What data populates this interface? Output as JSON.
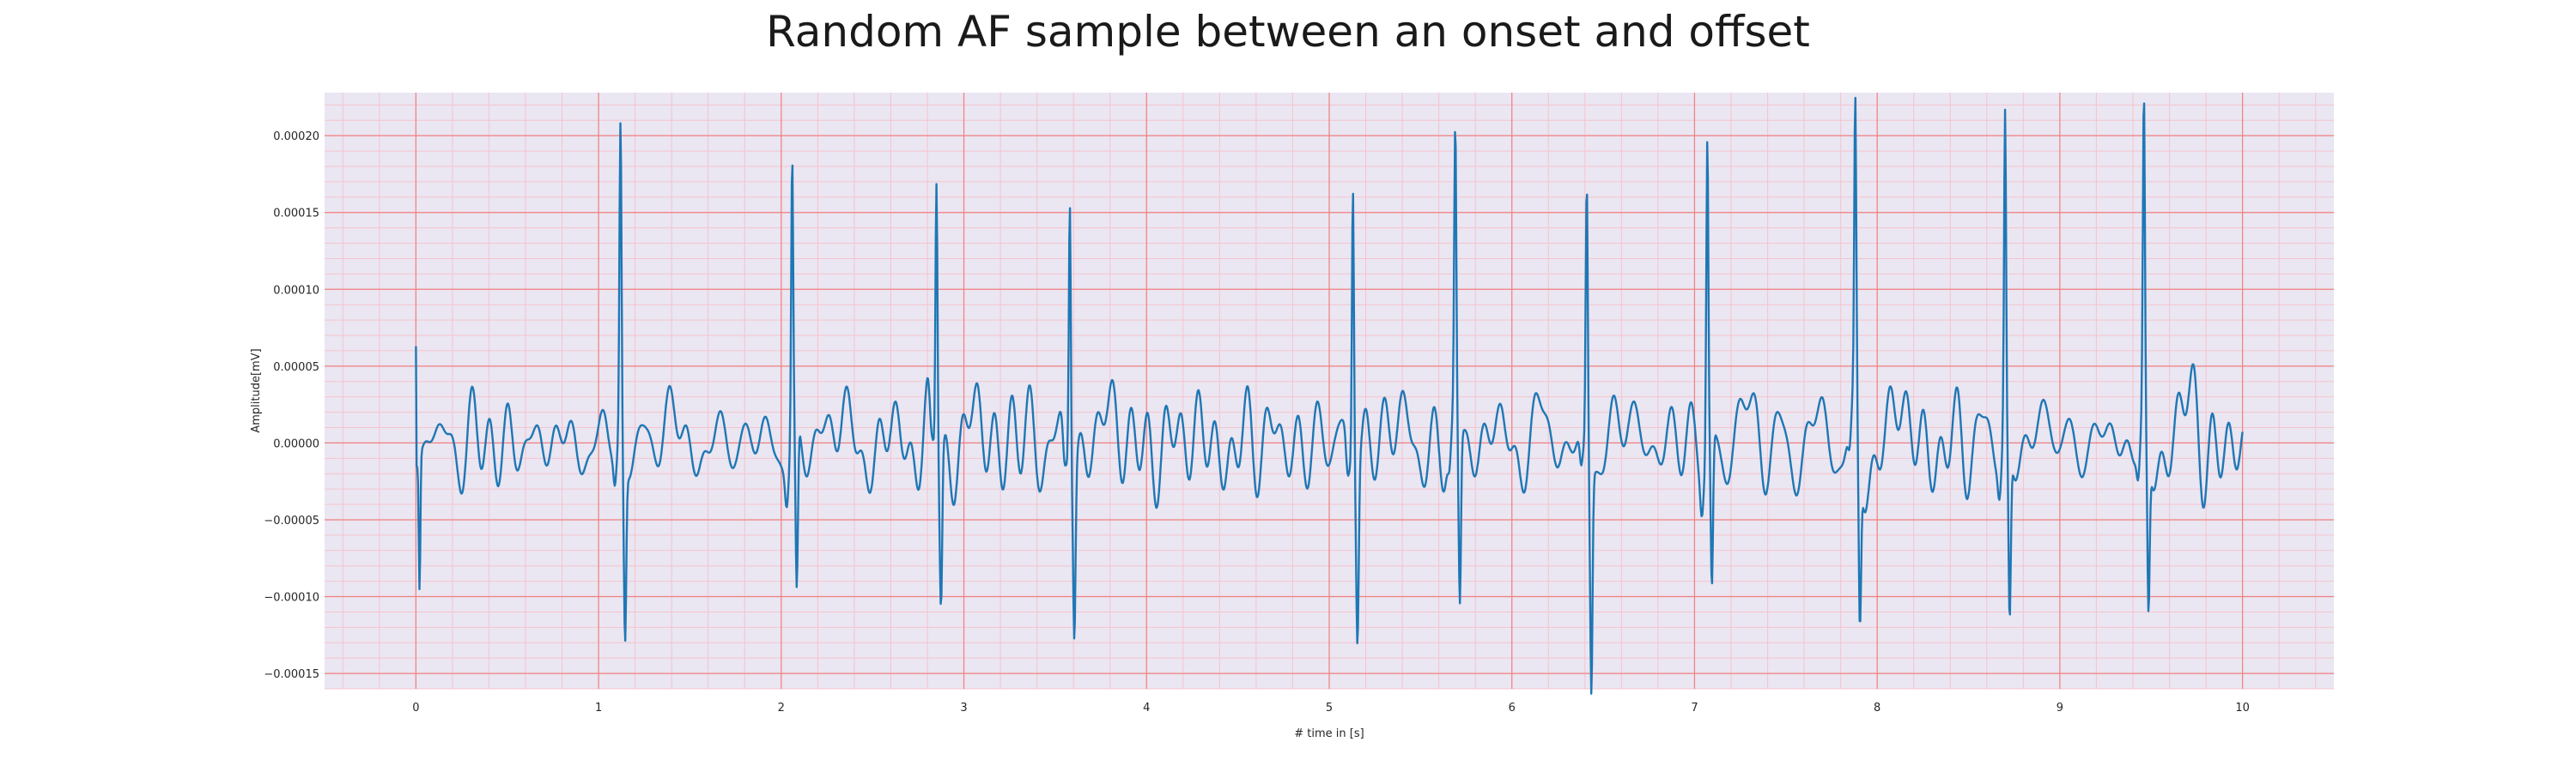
{
  "chart_data": {
    "type": "line",
    "title": "Random AF sample between an onset and offset",
    "xlabel": "# time in [s]",
    "ylabel": "Amplitude[mV]",
    "xlim": [
      -0.5,
      10.5
    ],
    "ylim": [
      -0.00016,
      0.000228
    ],
    "x_ticks": [
      0,
      1,
      2,
      3,
      4,
      5,
      6,
      7,
      8,
      9,
      10
    ],
    "x_tick_labels": [
      "0",
      "1",
      "2",
      "3",
      "4",
      "5",
      "6",
      "7",
      "8",
      "9",
      "10"
    ],
    "y_ticks": [
      -0.00015,
      -0.0001,
      -5e-05,
      0,
      5e-05,
      0.0001,
      0.00015,
      0.0002
    ],
    "y_tick_labels": [
      "−0.00015",
      "−0.00010",
      "−0.00005",
      "0.00000",
      "0.00005",
      "0.00010",
      "0.00015",
      "0.00020"
    ],
    "grid": true,
    "major_grid_color": "#f08080",
    "minor_grid_color": "#f5c4cc",
    "background_color": "#eae6f2",
    "line_color": "#1f77b4",
    "series": [
      {
        "beats": [
          {
            "t": 1.12,
            "peak": 0.000208,
            "trough": -0.000116
          },
          {
            "t": 2.06,
            "peak": 0.000185,
            "trough": -0.00011
          },
          {
            "t": 2.85,
            "peak": 0.00019,
            "trough": -9.4e-05
          },
          {
            "t": 3.58,
            "peak": 0.000185,
            "trough": -0.000103
          },
          {
            "t": 5.13,
            "peak": 0.000194,
            "trough": -0.000103
          },
          {
            "t": 5.69,
            "peak": 0.000186,
            "trough": -0.000115
          },
          {
            "t": 6.41,
            "peak": 0.000176,
            "trough": -0.000145
          },
          {
            "t": 7.07,
            "peak": 0.000205,
            "trough": -0.0001
          },
          {
            "t": 7.88,
            "peak": 0.000196,
            "trough": -0.000109
          },
          {
            "t": 8.7,
            "peak": 0.000209,
            "trough": -0.000113
          },
          {
            "t": 9.46,
            "peak": 0.000209,
            "trough": -0.000106
          }
        ],
        "start": {
          "t": 0.0,
          "v": 6.3e-05
        },
        "start_dip": {
          "t": 0.02,
          "v": -8.6e-05
        },
        "end": {
          "t": 10.0,
          "v": 0.0
        }
      }
    ]
  }
}
